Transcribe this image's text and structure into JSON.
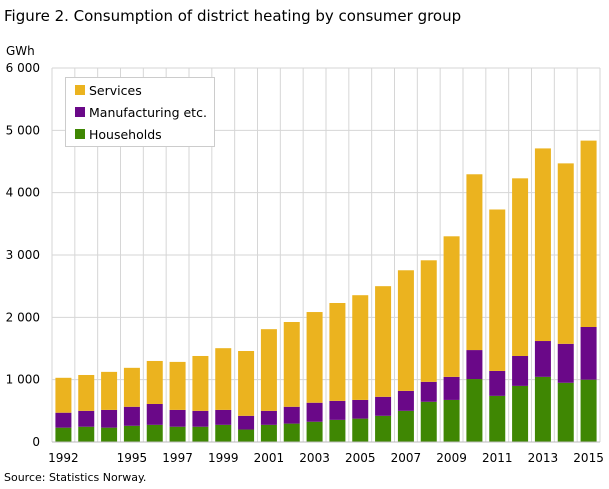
{
  "chart_data": {
    "type": "bar",
    "stacked": true,
    "title": "Figure 2. Consumption of district heating by consumer group",
    "ylabel": "GWh",
    "xlabel": "",
    "ylim": [
      0,
      6000
    ],
    "yticks": [
      "0",
      "1 000",
      "2 000",
      "3 000",
      "4 000",
      "5 000",
      "6 000"
    ],
    "xtick_labels": [
      "1992",
      "1995",
      "1997",
      "1999",
      "2001",
      "2003",
      "2005",
      "2007",
      "2009",
      "2011",
      "2013",
      "2015"
    ],
    "grid": true,
    "legend_position": "top-left",
    "categories": [
      "1992",
      "1993",
      "1994",
      "1995",
      "1996",
      "1997",
      "1998",
      "1999",
      "2000",
      "2001",
      "2002",
      "2003",
      "2004",
      "2005",
      "2006",
      "2007",
      "2008",
      "2009",
      "2010",
      "2011",
      "2012",
      "2013",
      "2014",
      "2015"
    ],
    "series": [
      {
        "name": "Households",
        "color": "#3F8703",
        "values": [
          230,
          245,
          230,
          260,
          275,
          245,
          245,
          275,
          200,
          275,
          295,
          325,
          355,
          375,
          420,
          500,
          645,
          675,
          1010,
          740,
          900,
          1045,
          950,
          1000
        ]
      },
      {
        "name": "Manufacturing etc.",
        "color": "#6A0888",
        "values": [
          240,
          255,
          285,
          305,
          335,
          270,
          255,
          240,
          220,
          225,
          270,
          305,
          305,
          300,
          305,
          320,
          320,
          370,
          465,
          400,
          480,
          575,
          625,
          845
        ]
      },
      {
        "name": "Services",
        "color": "#EBB31F",
        "values": [
          560,
          575,
          610,
          625,
          690,
          770,
          880,
          990,
          1040,
          1310,
          1360,
          1455,
          1570,
          1680,
          1775,
          1935,
          1950,
          2255,
          2820,
          2590,
          2850,
          3090,
          2895,
          2990
        ]
      }
    ],
    "source": "Source: Statistics Norway."
  }
}
